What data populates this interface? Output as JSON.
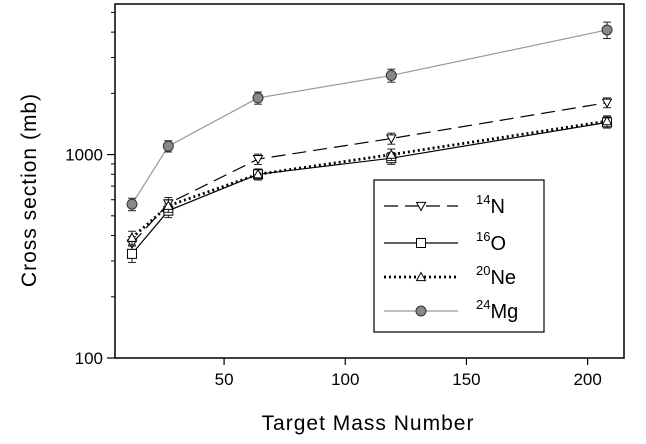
{
  "chart_data": {
    "type": "line",
    "xlabel": "Target Mass Number",
    "ylabel": "Cross section (mb)",
    "xlim": [
      5,
      215
    ],
    "ylim": [
      100,
      5500
    ],
    "y_scale": "log",
    "x_ticks": [
      50,
      100,
      150,
      200
    ],
    "x_tick_labels": [
      "50",
      "100",
      "150",
      "200"
    ],
    "y_ticks": [
      100,
      1000
    ],
    "y_tick_labels": [
      "100",
      "1000"
    ],
    "grid": false,
    "legend_position": "lower-right",
    "x": [
      12,
      27,
      64,
      119,
      208
    ],
    "series": [
      {
        "name_mass": "14",
        "name_symbol": "N",
        "values": [
          365,
          575,
          950,
          1200,
          1800
        ],
        "errors": [
          30,
          40,
          55,
          75,
          100
        ],
        "color": "#000000",
        "dash": "long-dash",
        "marker": "triangle-down"
      },
      {
        "name_mass": "16",
        "name_symbol": "O",
        "values": [
          325,
          530,
          800,
          960,
          1440
        ],
        "errors": [
          30,
          40,
          50,
          65,
          90
        ],
        "color": "#000000",
        "dash": "solid",
        "marker": "square"
      },
      {
        "name_mass": "20",
        "name_symbol": "Ne",
        "values": [
          390,
          560,
          800,
          1000,
          1460
        ],
        "errors": [
          30,
          40,
          50,
          65,
          90
        ],
        "color": "#000000",
        "dash": "dotted",
        "marker": "triangle-up"
      },
      {
        "name_mass": "24",
        "name_symbol": "Mg",
        "values": [
          570,
          1100,
          1900,
          2450,
          4100
        ],
        "errors": [
          40,
          70,
          130,
          180,
          380
        ],
        "color": "#999999",
        "dash": "solid",
        "marker": "circle"
      }
    ]
  }
}
